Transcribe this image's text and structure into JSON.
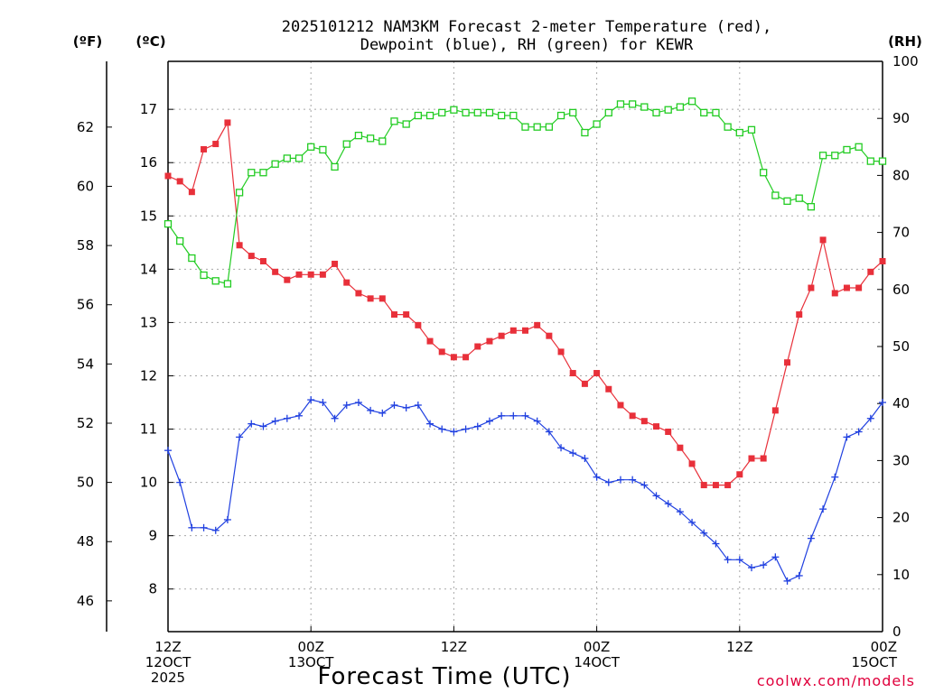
{
  "title_lines": [
    "2025101212 NAM3KM Forecast 2-meter Temperature (red),",
    "Dewpoint (blue), RH (green) for KEWR"
  ],
  "units": {
    "fahrenheit": "(ºF)",
    "celsius": "(ºC)",
    "rh": "(RH)"
  },
  "x_axis_title": "Forecast Time (UTC)",
  "credit": "coolwx.com/models",
  "x_ticks": [
    {
      "h": 0,
      "line1": "12Z",
      "line2": "12OCT",
      "line3": "2025"
    },
    {
      "h": 12,
      "line1": "00Z",
      "line2": "13OCT",
      "line3": ""
    },
    {
      "h": 24,
      "line1": "12Z",
      "line2": "",
      "line3": ""
    },
    {
      "h": 36,
      "line1": "00Z",
      "line2": "14OCT",
      "line3": ""
    },
    {
      "h": 48,
      "line1": "12Z",
      "line2": "",
      "line3": ""
    },
    {
      "h": 60,
      "line1": "00Z",
      "line2": "15OCT",
      "line3": ""
    }
  ],
  "chart_data": {
    "type": "line",
    "title": "2025101212 NAM3KM Forecast 2-meter Temperature (red), Dewpoint (blue), RH (green) for KEWR",
    "xlabel": "Forecast Time (UTC)",
    "x_unit": "forecast hour",
    "xlim": [
      0,
      60
    ],
    "celsius_ylim": [
      7.2,
      17.9
    ],
    "fahrenheit_ticks": [
      46,
      48,
      50,
      52,
      54,
      56,
      58,
      60,
      62
    ],
    "celsius_ticks": [
      8,
      9,
      10,
      11,
      12,
      13,
      14,
      15,
      16,
      17
    ],
    "rh_ylim": [
      0,
      100
    ],
    "rh_ticks": [
      0,
      10,
      20,
      30,
      40,
      50,
      60,
      70,
      80,
      90,
      100
    ],
    "x": [
      0,
      1,
      2,
      3,
      4,
      5,
      6,
      7,
      8,
      9,
      10,
      11,
      12,
      13,
      14,
      15,
      16,
      17,
      18,
      19,
      20,
      21,
      22,
      23,
      24,
      25,
      26,
      27,
      28,
      29,
      30,
      31,
      32,
      33,
      34,
      35,
      36,
      37,
      38,
      39,
      40,
      41,
      42,
      43,
      44,
      45,
      46,
      47,
      48,
      49,
      50,
      51,
      52,
      53,
      54,
      55,
      56,
      57,
      58,
      59,
      60
    ],
    "series": [
      {
        "name": "Temperature",
        "unit": "°C",
        "color": "#e8303a",
        "marker": "filled-square",
        "values": [
          15.75,
          15.65,
          15.45,
          16.25,
          16.35,
          16.75,
          14.45,
          14.25,
          14.15,
          13.95,
          13.8,
          13.9,
          13.9,
          13.9,
          14.1,
          13.75,
          13.55,
          13.45,
          13.45,
          13.15,
          13.15,
          12.95,
          12.65,
          12.45,
          12.35,
          12.35,
          12.55,
          12.65,
          12.75,
          12.85,
          12.85,
          12.95,
          12.75,
          12.45,
          12.05,
          11.85,
          12.05,
          11.75,
          11.45,
          11.25,
          11.15,
          11.05,
          10.95,
          10.65,
          10.35,
          9.95,
          9.95,
          9.95,
          10.15,
          10.45,
          10.45,
          11.35,
          12.25,
          13.15,
          13.65,
          14.55,
          13.55,
          13.65,
          13.65,
          13.95,
          14.15
        ]
      },
      {
        "name": "Dewpoint",
        "unit": "°C",
        "color": "#2040e0",
        "marker": "plus",
        "values": [
          10.6,
          10.0,
          9.15,
          9.15,
          9.1,
          9.3,
          10.85,
          11.1,
          11.05,
          11.15,
          11.2,
          11.25,
          11.55,
          11.5,
          11.2,
          11.45,
          11.5,
          11.35,
          11.3,
          11.45,
          11.4,
          11.45,
          11.1,
          11.0,
          10.95,
          11.0,
          11.05,
          11.15,
          11.25,
          11.25,
          11.25,
          11.15,
          10.95,
          10.65,
          10.55,
          10.45,
          10.1,
          10.0,
          10.05,
          10.05,
          9.95,
          9.75,
          9.6,
          9.45,
          9.25,
          9.05,
          8.85,
          8.55,
          8.55,
          8.4,
          8.45,
          8.6,
          8.15,
          8.25,
          8.95,
          9.5,
          10.1,
          10.85,
          10.95,
          11.2,
          11.5
        ]
      },
      {
        "name": "RH",
        "unit": "%",
        "color": "#22cc22",
        "marker": "open-square",
        "values": [
          71.5,
          68.5,
          65.5,
          62.5,
          61.5,
          61.0,
          77.0,
          80.5,
          80.5,
          82.0,
          83.0,
          83.0,
          85.0,
          84.5,
          81.5,
          85.5,
          87.0,
          86.5,
          86.0,
          89.5,
          89.0,
          90.5,
          90.5,
          91.0,
          91.5,
          91.0,
          91.0,
          91.0,
          90.5,
          90.5,
          88.5,
          88.5,
          88.5,
          90.5,
          91.0,
          87.5,
          89.0,
          91.0,
          92.5,
          92.5,
          92.0,
          91.0,
          91.5,
          92.0,
          93.0,
          91.0,
          91.0,
          88.5,
          87.5,
          88.0,
          80.5,
          76.5,
          75.5,
          76.0,
          74.5,
          83.5,
          83.5,
          84.5,
          85.0,
          82.5,
          82.5
        ]
      }
    ]
  }
}
